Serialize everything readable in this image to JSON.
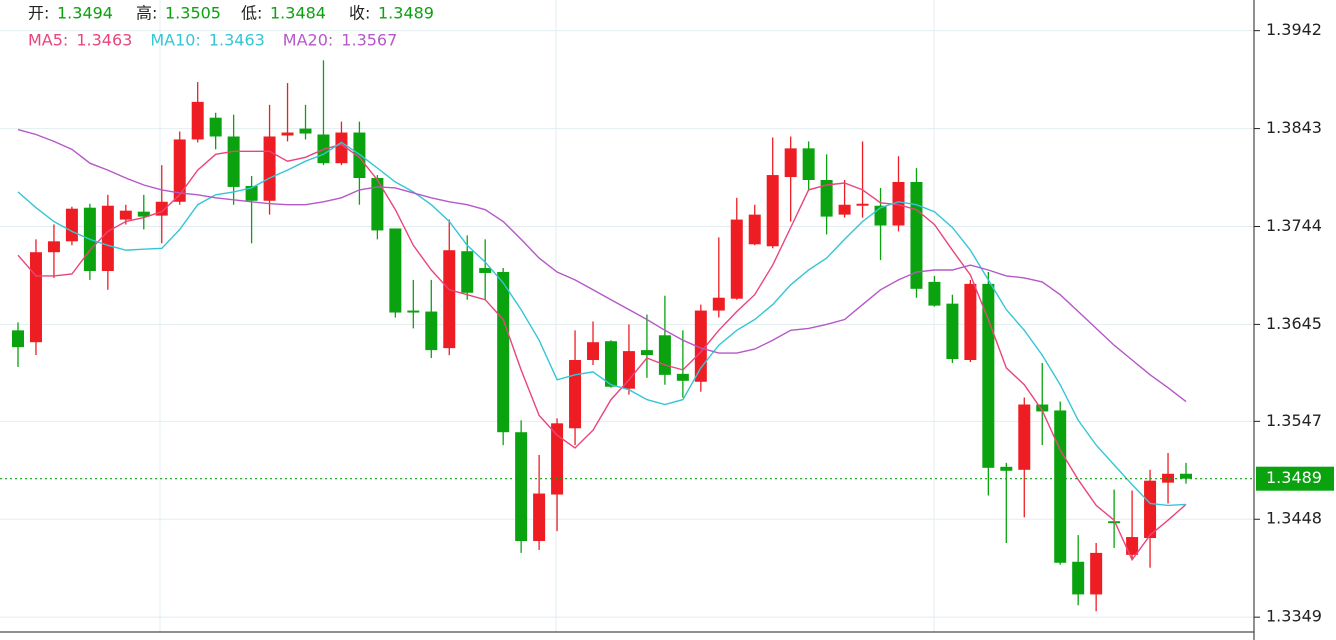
{
  "chart_data": {
    "type": "candlestick",
    "ohlc_labels": [
      "开:",
      "高:",
      "低:",
      "收:"
    ],
    "up_color": "#ee1d23",
    "down_color": "#0aa20f",
    "open": [
      1.3639,
      1.3627,
      1.3718,
      1.3729,
      1.3763,
      1.3699,
      1.3751,
      1.3759,
      1.3755,
      1.3769,
      1.3832,
      1.3854,
      1.3835,
      1.3785,
      1.377,
      1.3836,
      1.3843,
      1.3837,
      1.3808,
      1.3839,
      1.3793,
      1.3742,
      1.3659,
      1.3658,
      1.3621,
      1.3719,
      1.3702,
      1.3698,
      1.3536,
      1.3426,
      1.3473,
      1.354,
      1.3609,
      1.3628,
      1.358,
      1.3619,
      1.3634,
      1.3595,
      1.3587,
      1.3659,
      1.3671,
      1.3726,
      1.3724,
      1.3794,
      1.3823,
      1.3791,
      1.3756,
      1.3765,
      1.3765,
      1.3745,
      1.3789,
      1.3688,
      1.3666,
      1.3609,
      1.3686,
      1.3501,
      1.3498,
      1.3564,
      1.3558,
      1.3405,
      1.3372,
      1.3446,
      1.3412,
      1.3429,
      1.3485,
      1.3494
    ],
    "high": [
      1.3647,
      1.3731,
      1.3746,
      1.3764,
      1.3767,
      1.3776,
      1.3766,
      1.3776,
      1.3806,
      1.384,
      1.389,
      1.3859,
      1.3857,
      1.3795,
      1.3867,
      1.3889,
      1.3867,
      1.3912,
      1.385,
      1.385,
      1.3796,
      1.3742,
      1.369,
      1.369,
      1.3751,
      1.3735,
      1.3731,
      1.3702,
      1.3548,
      1.3513,
      1.355,
      1.3639,
      1.3648,
      1.3629,
      1.3645,
      1.3655,
      1.3674,
      1.3639,
      1.3665,
      1.3733,
      1.3773,
      1.3766,
      1.3834,
      1.3835,
      1.383,
      1.3817,
      1.3791,
      1.383,
      1.3783,
      1.3815,
      1.3803,
      1.3694,
      1.3675,
      1.369,
      1.3698,
      1.3505,
      1.3571,
      1.3606,
      1.3567,
      1.3432,
      1.3424,
      1.3478,
      1.3477,
      1.3498,
      1.3515,
      1.3505
    ],
    "low": [
      1.3602,
      1.3614,
      1.3692,
      1.3725,
      1.369,
      1.368,
      1.3746,
      1.3741,
      1.3727,
      1.3766,
      1.3829,
      1.3822,
      1.3766,
      1.3727,
      1.3756,
      1.383,
      1.3832,
      1.3806,
      1.3806,
      1.3766,
      1.3731,
      1.3652,
      1.3641,
      1.3611,
      1.3614,
      1.367,
      1.367,
      1.3523,
      1.3414,
      1.3417,
      1.3436,
      1.3523,
      1.3604,
      1.3581,
      1.3574,
      1.3591,
      1.3584,
      1.3571,
      1.3577,
      1.3652,
      1.367,
      1.3725,
      1.3722,
      1.3749,
      1.3781,
      1.3736,
      1.3753,
      1.3753,
      1.371,
      1.3739,
      1.3672,
      1.3663,
      1.3606,
      1.3607,
      1.3472,
      1.3424,
      1.345,
      1.3523,
      1.3402,
      1.3361,
      1.3355,
      1.3419,
      1.3407,
      1.3399,
      1.3464,
      1.3484
    ],
    "close": [
      1.3622,
      1.3718,
      1.3729,
      1.3762,
      1.3699,
      1.3765,
      1.376,
      1.3754,
      1.3769,
      1.3832,
      1.387,
      1.3835,
      1.3784,
      1.377,
      1.3835,
      1.3839,
      1.3838,
      1.3808,
      1.3839,
      1.3793,
      1.374,
      1.3657,
      1.3657,
      1.3619,
      1.372,
      1.3677,
      1.3697,
      1.3536,
      1.3426,
      1.3474,
      1.3545,
      1.3609,
      1.3627,
      1.3582,
      1.3618,
      1.3614,
      1.3594,
      1.3588,
      1.3659,
      1.3672,
      1.3751,
      1.3756,
      1.3796,
      1.3823,
      1.3791,
      1.3754,
      1.3766,
      1.3767,
      1.3745,
      1.3789,
      1.3681,
      1.3664,
      1.361,
      1.3686,
      1.35,
      1.3497,
      1.3564,
      1.3557,
      1.3404,
      1.3372,
      1.3414,
      1.3444,
      1.343,
      1.3487,
      1.3494,
      1.3489
    ],
    "series": [
      {
        "name": "MA5:",
        "color": "#e9457c",
        "values": [
          1.3715,
          1.3694,
          1.3694,
          1.3696,
          1.372,
          1.3739,
          1.3749,
          1.3753,
          1.3759,
          1.3776,
          1.3801,
          1.3817,
          1.382,
          1.382,
          1.382,
          1.381,
          1.3814,
          1.3822,
          1.3827,
          1.3814,
          1.3791,
          1.3761,
          1.3725,
          1.37,
          1.368,
          1.3675,
          1.367,
          1.365,
          1.3599,
          1.3553,
          1.3533,
          1.352,
          1.3538,
          1.3569,
          1.3589,
          1.3611,
          1.3604,
          1.3599,
          1.3617,
          1.3639,
          1.3658,
          1.3675,
          1.3705,
          1.3743,
          1.3781,
          1.3786,
          1.3788,
          1.3781,
          1.3768,
          1.3766,
          1.3761,
          1.3746,
          1.372,
          1.3695,
          1.365,
          1.3601,
          1.3584,
          1.3558,
          1.3518,
          1.3488,
          1.3462,
          1.3447,
          1.3407,
          1.3432,
          1.3447,
          1.3463
        ]
      },
      {
        "name": "MA10:",
        "color": "#35c6d6",
        "values": [
          1.3779,
          1.3763,
          1.3749,
          1.3739,
          1.3731,
          1.3725,
          1.372,
          1.3721,
          1.3722,
          1.3741,
          1.3766,
          1.3776,
          1.3779,
          1.3783,
          1.3793,
          1.3801,
          1.381,
          1.3817,
          1.3829,
          1.3817,
          1.3803,
          1.3789,
          1.3779,
          1.3766,
          1.3749,
          1.3725,
          1.3708,
          1.3687,
          1.366,
          1.3629,
          1.3589,
          1.3594,
          1.3597,
          1.3584,
          1.3579,
          1.3569,
          1.3564,
          1.3569,
          1.3601,
          1.3624,
          1.3639,
          1.365,
          1.3665,
          1.3685,
          1.37,
          1.3712,
          1.3731,
          1.3749,
          1.3763,
          1.3769,
          1.3766,
          1.3759,
          1.3743,
          1.372,
          1.369,
          1.366,
          1.3639,
          1.3614,
          1.3584,
          1.3548,
          1.3523,
          1.3503,
          1.3483,
          1.3464,
          1.3462,
          1.3463
        ]
      },
      {
        "name": "MA20:",
        "color": "#b558c8",
        "values": [
          1.3842,
          1.3837,
          1.383,
          1.3822,
          1.3808,
          1.3801,
          1.3793,
          1.3786,
          1.3781,
          1.3778,
          1.3776,
          1.3773,
          1.3771,
          1.3769,
          1.3767,
          1.3766,
          1.3766,
          1.3769,
          1.3773,
          1.3781,
          1.3784,
          1.3783,
          1.3778,
          1.3773,
          1.3769,
          1.3766,
          1.3761,
          1.3749,
          1.3731,
          1.3712,
          1.3698,
          1.369,
          1.368,
          1.367,
          1.366,
          1.365,
          1.3639,
          1.3629,
          1.3621,
          1.3616,
          1.3616,
          1.362,
          1.3629,
          1.3639,
          1.3641,
          1.3645,
          1.365,
          1.3665,
          1.368,
          1.369,
          1.3698,
          1.37,
          1.37,
          1.3705,
          1.37,
          1.3694,
          1.3692,
          1.3688,
          1.3675,
          1.3658,
          1.3641,
          1.3624,
          1.3609,
          1.3594,
          1.3581,
          1.3567
        ]
      }
    ],
    "ylim": [
      1.3334,
      1.3973
    ],
    "yticks": [
      1.3349,
      1.3448,
      1.3547,
      1.3645,
      1.3744,
      1.3843,
      1.3942
    ],
    "grid": true
  }
}
